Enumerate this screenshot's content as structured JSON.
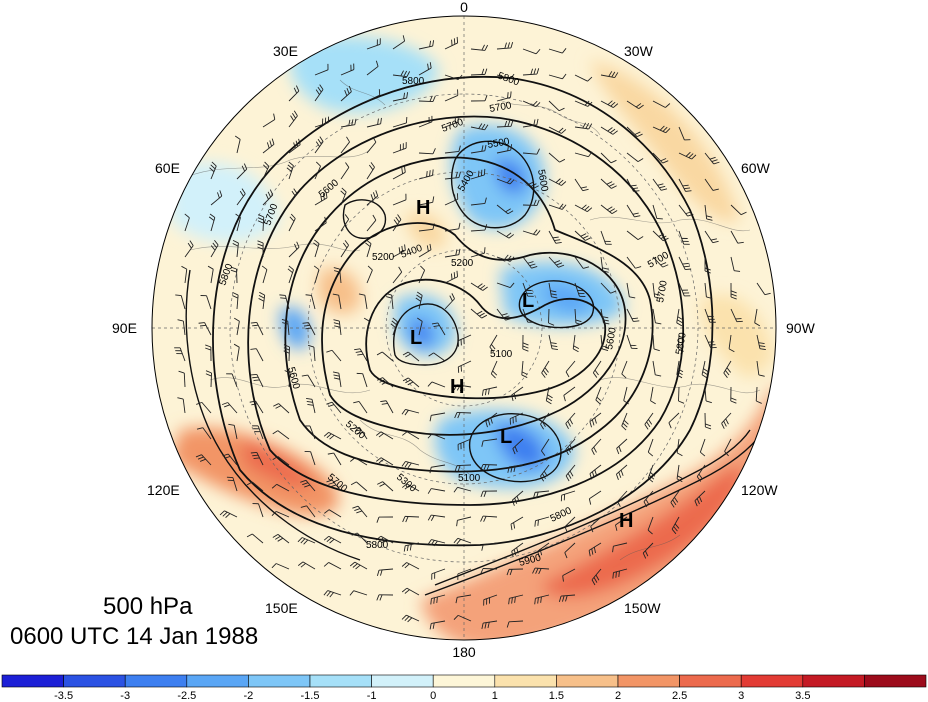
{
  "map": {
    "projection": "north-polar-stereographic",
    "field_shading": "anomaly",
    "longitude_labels": [
      {
        "lon": 0,
        "text": "0"
      },
      {
        "lon": 30,
        "text": "30W"
      },
      {
        "lon": 60,
        "text": "60W"
      },
      {
        "lon": 90,
        "text": "90W"
      },
      {
        "lon": 120,
        "text": "120W"
      },
      {
        "lon": 150,
        "text": "150W"
      },
      {
        "lon": 180,
        "text": "180"
      },
      {
        "lon": 210,
        "text": "150E"
      },
      {
        "lon": 240,
        "text": "120E"
      },
      {
        "lon": 270,
        "text": "90E"
      },
      {
        "lon": 300,
        "text": "60E"
      },
      {
        "lon": 330,
        "text": "30E"
      }
    ],
    "contour_labels": [
      "5800",
      "5800",
      "5700",
      "5700",
      "5500",
      "5400",
      "5600",
      "5600",
      "5700",
      "5200",
      "5400",
      "5200",
      "5800",
      "5100",
      "5600",
      "5700",
      "5600",
      "5800",
      "5700",
      "5200",
      "5300",
      "5100",
      "5800",
      "5700",
      "5800",
      "5900"
    ],
    "pressure_centers": [
      {
        "type": "H",
        "text": "H"
      },
      {
        "type": "H",
        "text": "H"
      },
      {
        "type": "H",
        "text": "H"
      },
      {
        "type": "L",
        "text": "L"
      },
      {
        "type": "L",
        "text": "L"
      },
      {
        "type": "L",
        "text": "L"
      }
    ]
  },
  "title": {
    "level": "500 hPa",
    "time": "0600 UTC 14 Jan 1988"
  },
  "colorbar": {
    "colors": [
      "#1c1fd6",
      "#2b52e3",
      "#3d7ff0",
      "#5aa6f5",
      "#7ec6f7",
      "#a6e0f8",
      "#d2f1fa",
      "#fdf6d8",
      "#fbe2ad",
      "#f7c08a",
      "#f29566",
      "#ec6a4d",
      "#e23b34",
      "#c41a24",
      "#9c0b1b"
    ],
    "tick_labels": [
      "-3.5",
      "-3",
      "-2.5",
      "-2",
      "-1.5",
      "-1",
      "0",
      "1",
      "1.5",
      "2",
      "2.5",
      "3",
      "3.5"
    ]
  }
}
